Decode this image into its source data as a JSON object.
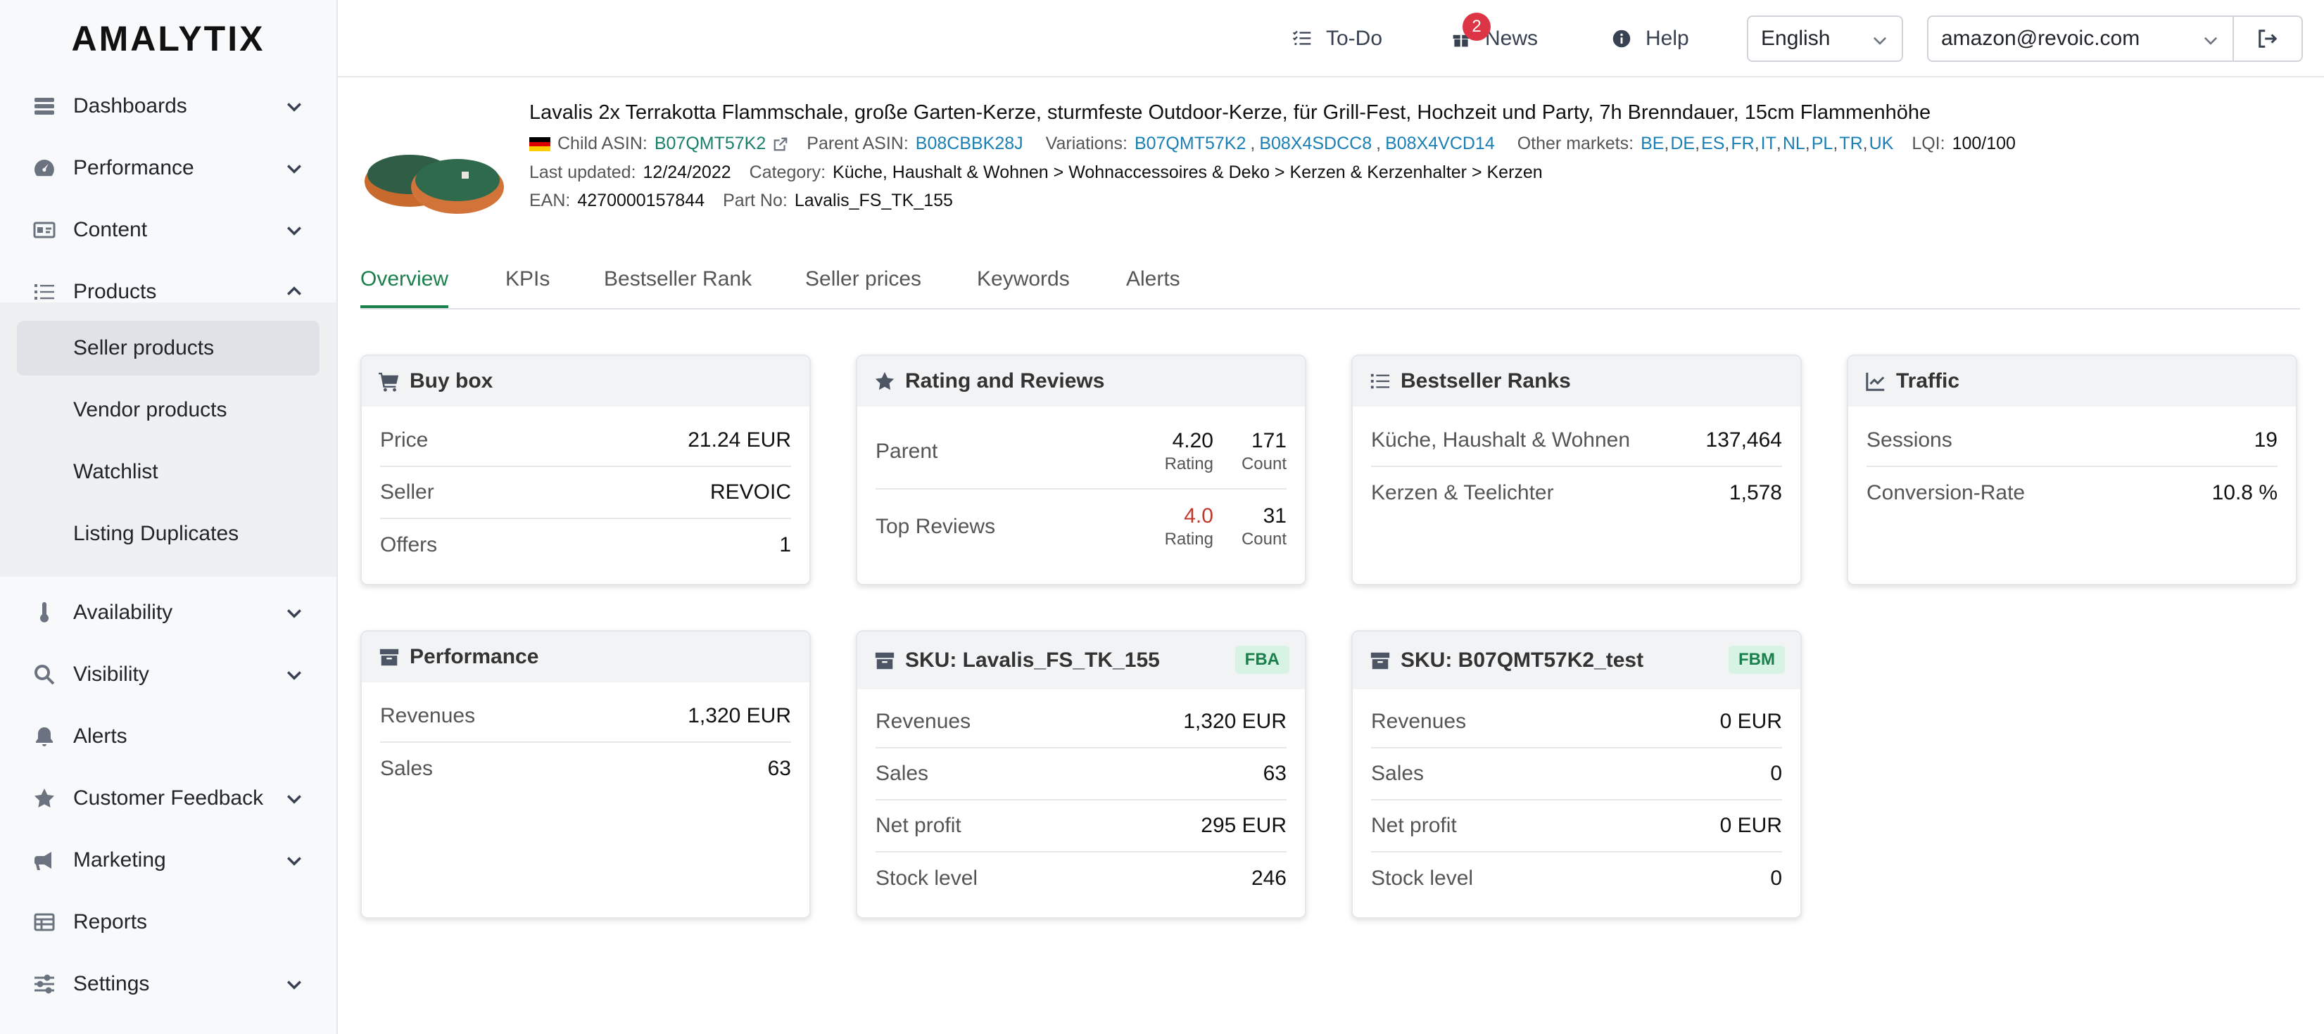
{
  "app": {
    "logo": "AMALYTIX"
  },
  "sidebar": {
    "items": [
      {
        "label": "Dashboards"
      },
      {
        "label": "Performance"
      },
      {
        "label": "Content"
      },
      {
        "label": "Products"
      },
      {
        "label": "Availability"
      },
      {
        "label": "Visibility"
      },
      {
        "label": "Alerts"
      },
      {
        "label": "Customer Feedback"
      },
      {
        "label": "Marketing"
      },
      {
        "label": "Reports"
      },
      {
        "label": "Settings"
      }
    ],
    "products_sub": [
      {
        "label": "Seller products",
        "active": true
      },
      {
        "label": "Vendor products"
      },
      {
        "label": "Watchlist"
      },
      {
        "label": "Listing Duplicates"
      }
    ]
  },
  "topbar": {
    "todo": "To-Do",
    "news": "News",
    "news_count": "2",
    "help": "Help",
    "language": "English",
    "account": "amazon@revoic.com"
  },
  "product": {
    "title": "Lavalis 2x Terrakotta Flammschale, große Garten-Kerze, sturmfeste Outdoor-Kerze, für Grill-Fest, Hochzeit und Party, 7h Brenndauer, 15cm Flammenhöhe",
    "child_asin_label": "Child ASIN:",
    "child_asin": "B07QMT57K2",
    "parent_asin_label": "Parent ASIN:",
    "parent_asin": "B08CBBK28J",
    "variations_label": "Variations:",
    "variations": [
      "B07QMT57K2",
      "B08X4SDCC8",
      "B08X4VCD14"
    ],
    "other_markets_label": "Other markets:",
    "other_markets": [
      "BE",
      "DE",
      "ES",
      "FR",
      "IT",
      "NL",
      "PL",
      "TR",
      "UK"
    ],
    "lqi_label": "LQI:",
    "lqi": "100/100",
    "last_updated_label": "Last updated:",
    "last_updated": "12/24/2022",
    "category_label": "Category:",
    "category": "Küche, Haushalt & Wohnen > Wohnaccessoires & Deko > Kerzen & Kerzenhalter > Kerzen",
    "ean_label": "EAN:",
    "ean": "4270000157844",
    "part_no_label": "Part No:",
    "part_no": "Lavalis_FS_TK_155"
  },
  "tabs": [
    "Overview",
    "KPIs",
    "Bestseller Rank",
    "Seller prices",
    "Keywords",
    "Alerts"
  ],
  "cards": {
    "buybox": {
      "title": "Buy box",
      "rows": [
        {
          "k": "Price",
          "v": "21.24 EUR"
        },
        {
          "k": "Seller",
          "v": "REVOIC"
        },
        {
          "k": "Offers",
          "v": "1"
        }
      ]
    },
    "rating": {
      "title": "Rating and Reviews",
      "rows": [
        {
          "k": "Parent",
          "rating": "4.20",
          "rating_label": "Rating",
          "count": "171",
          "count_label": "Count"
        },
        {
          "k": "Top Reviews",
          "rating": "4.0",
          "rating_label": "Rating",
          "count": "31",
          "count_label": "Count"
        }
      ]
    },
    "bsr": {
      "title": "Bestseller Ranks",
      "rows": [
        {
          "k": "Küche, Haushalt & Wohnen",
          "v": "137,464"
        },
        {
          "k": "Kerzen & Teelichter",
          "v": "1,578"
        }
      ]
    },
    "traffic": {
      "title": "Traffic",
      "rows": [
        {
          "k": "Sessions",
          "v": "19"
        },
        {
          "k": "Conversion-Rate",
          "v": "10.8 %"
        }
      ]
    },
    "performance": {
      "title": "Performance",
      "rows": [
        {
          "k": "Revenues",
          "v": "1,320 EUR"
        },
        {
          "k": "Sales",
          "v": "63"
        }
      ]
    },
    "sku1": {
      "title": "SKU: Lavalis_FS_TK_155",
      "badge": "FBA",
      "rows": [
        {
          "k": "Revenues",
          "v": "1,320 EUR"
        },
        {
          "k": "Sales",
          "v": "63"
        },
        {
          "k": "Net profit",
          "v": "295 EUR"
        },
        {
          "k": "Stock level",
          "v": "246"
        }
      ]
    },
    "sku2": {
      "title": "SKU: B07QMT57K2_test",
      "badge": "FBM",
      "rows": [
        {
          "k": "Revenues",
          "v": "0 EUR"
        },
        {
          "k": "Sales",
          "v": "0"
        },
        {
          "k": "Net profit",
          "v": "0 EUR"
        },
        {
          "k": "Stock level",
          "v": "0"
        }
      ]
    }
  },
  "colors": {
    "accent": "#1a7f4b",
    "link": "#1a7fb5",
    "danger": "#dc3545"
  }
}
